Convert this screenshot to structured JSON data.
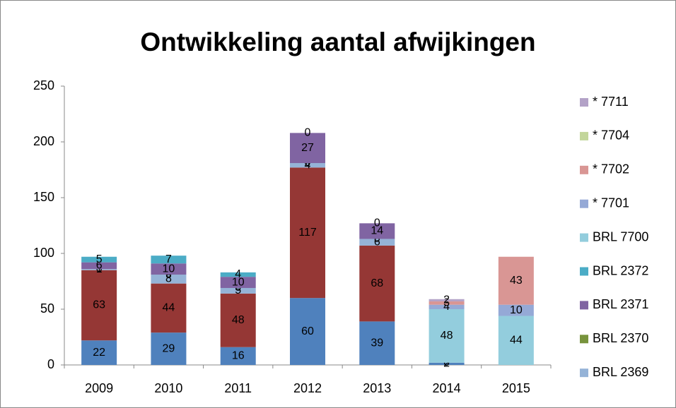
{
  "chart_data": {
    "type": "stacked_bar",
    "title": "Ontwikkeling aantal afwijkingen",
    "categories": [
      "2009",
      "2010",
      "2011",
      "2012",
      "2013",
      "2014",
      "2015"
    ],
    "series": [
      {
        "name": null,
        "color": "#4f81bd",
        "values": [
          22,
          29,
          16,
          60,
          39,
          2,
          null
        ]
      },
      {
        "name": null,
        "color": "#953735",
        "values": [
          63,
          44,
          48,
          117,
          68,
          0,
          null
        ]
      },
      {
        "name": "BRL 2369",
        "color": "#95b3d7",
        "values": [
          1,
          8,
          5,
          4,
          6,
          null,
          null
        ]
      },
      {
        "name": "BRL 2370",
        "color": "#77933c",
        "values": [
          0,
          0,
          0,
          0,
          0,
          null,
          null
        ]
      },
      {
        "name": "BRL 2371",
        "color": "#8064a2",
        "values": [
          6,
          10,
          10,
          27,
          14,
          null,
          null
        ]
      },
      {
        "name": "BRL 2372",
        "color": "#4bacc6",
        "values": [
          5,
          7,
          4,
          0,
          0,
          null,
          null
        ]
      },
      {
        "name": "BRL 7700",
        "color": "#93cddd",
        "values": [
          null,
          null,
          null,
          null,
          null,
          48,
          44
        ]
      },
      {
        "name": "* 7701",
        "color": "#95a9d6",
        "values": [
          null,
          null,
          null,
          null,
          null,
          4,
          10
        ]
      },
      {
        "name": "* 7702",
        "color": "#d99694",
        "values": [
          null,
          null,
          null,
          null,
          null,
          3,
          43
        ]
      },
      {
        "name": "* 7704",
        "color": "#c3d69b",
        "values": [
          null,
          null,
          null,
          null,
          null,
          null,
          null
        ]
      },
      {
        "name": "* 7711",
        "color": "#b3a2c7",
        "values": [
          null,
          null,
          null,
          null,
          null,
          2,
          null
        ]
      }
    ],
    "ylim": [
      0,
      250
    ],
    "yticks": [
      0,
      50,
      100,
      150,
      200,
      250
    ],
    "grid": false,
    "legend": "right"
  }
}
